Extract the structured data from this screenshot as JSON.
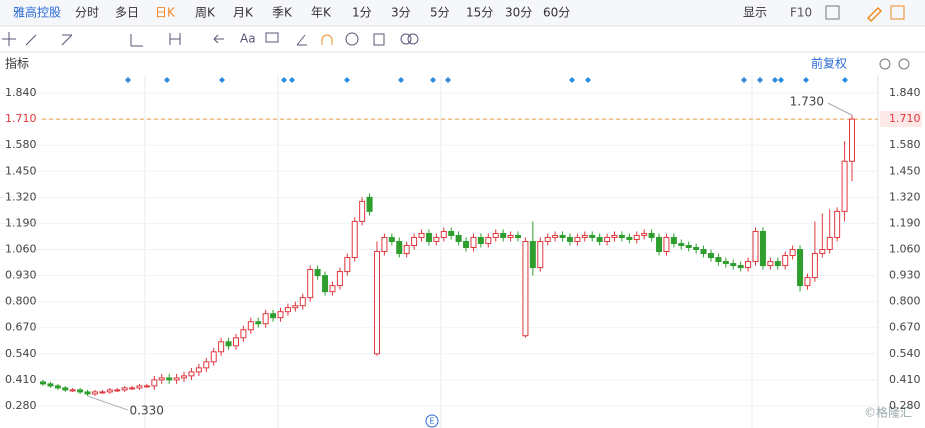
{
  "toolbar": {
    "stock": "雅高控股",
    "periods": [
      "分时",
      "多日",
      "日K",
      "周K",
      "月K",
      "季K",
      "年K",
      "1分",
      "3分",
      "5分",
      "15分",
      "30分",
      "60分"
    ],
    "display": "显示",
    "f10": "F10",
    "text_tool": "Aa"
  },
  "indicator_label": "指标",
  "adjust": "前复权",
  "event_marker": "E",
  "watermark": "©格隆汇",
  "chart_data": {
    "type": "candlestick",
    "open": [
      0.4,
      0.39,
      0.38,
      0.37,
      0.36,
      0.36,
      0.35,
      0.34,
      0.35,
      0.35,
      0.36,
      0.36,
      0.37,
      0.37,
      0.38,
      0.38,
      0.41,
      0.42,
      0.41,
      0.42,
      0.43,
      0.45,
      0.47,
      0.5,
      0.55,
      0.6,
      0.58,
      0.62,
      0.66,
      0.7,
      0.69,
      0.74,
      0.72,
      0.75,
      0.77,
      0.78,
      0.82,
      0.96,
      0.93,
      0.85,
      0.88,
      0.95,
      1.02,
      1.2,
      1.32,
      0.54,
      1.05,
      1.12,
      1.1,
      1.04,
      1.08,
      1.12,
      1.14,
      1.1,
      1.12,
      1.15,
      1.13,
      1.1,
      1.07,
      1.12,
      1.09,
      1.12,
      1.14,
      1.12,
      1.13,
      0.63,
      1.1,
      0.97,
      1.1,
      1.12,
      1.13,
      1.12,
      1.1,
      1.12,
      1.13,
      1.12,
      1.1,
      1.12,
      1.13,
      1.12,
      1.11,
      1.13,
      1.14,
      1.12,
      1.05,
      1.12,
      1.09,
      1.08,
      1.07,
      1.06,
      1.04,
      1.02,
      1.0,
      0.99,
      0.98,
      0.97,
      1.0,
      1.15,
      0.98,
      1.0,
      0.98,
      1.03,
      1.06,
      0.88,
      0.92,
      1.04,
      1.06,
      1.12,
      1.25,
      1.5
    ],
    "high": [
      0.41,
      0.4,
      0.39,
      0.38,
      0.37,
      0.37,
      0.36,
      0.36,
      0.36,
      0.37,
      0.37,
      0.38,
      0.38,
      0.39,
      0.39,
      0.43,
      0.44,
      0.44,
      0.44,
      0.45,
      0.47,
      0.49,
      0.52,
      0.57,
      0.62,
      0.62,
      0.64,
      0.68,
      0.72,
      0.72,
      0.76,
      0.76,
      0.77,
      0.79,
      0.8,
      0.84,
      0.98,
      0.98,
      0.95,
      0.9,
      0.97,
      1.04,
      1.22,
      1.32,
      1.34,
      1.1,
      1.14,
      1.14,
      1.12,
      1.1,
      1.14,
      1.16,
      1.16,
      1.14,
      1.17,
      1.17,
      1.15,
      1.12,
      1.14,
      1.14,
      1.14,
      1.16,
      1.16,
      1.15,
      1.15,
      1.12,
      1.2,
      1.12,
      1.14,
      1.15,
      1.15,
      1.14,
      1.14,
      1.15,
      1.15,
      1.14,
      1.14,
      1.15,
      1.15,
      1.14,
      1.15,
      1.16,
      1.16,
      1.14,
      1.14,
      1.14,
      1.11,
      1.1,
      1.09,
      1.08,
      1.06,
      1.04,
      1.02,
      1.01,
      1.0,
      1.02,
      1.17,
      1.17,
      1.02,
      1.02,
      1.05,
      1.08,
      1.08,
      0.94,
      1.2,
      1.24,
      1.26,
      1.27,
      1.6,
      1.73
    ],
    "low": [
      0.38,
      0.37,
      0.36,
      0.35,
      0.35,
      0.34,
      0.33,
      0.33,
      0.34,
      0.34,
      0.35,
      0.35,
      0.36,
      0.36,
      0.37,
      0.36,
      0.39,
      0.39,
      0.39,
      0.4,
      0.41,
      0.43,
      0.45,
      0.48,
      0.53,
      0.56,
      0.56,
      0.6,
      0.64,
      0.67,
      0.67,
      0.7,
      0.7,
      0.73,
      0.75,
      0.76,
      0.8,
      0.91,
      0.83,
      0.83,
      0.86,
      0.93,
      1.0,
      1.18,
      1.23,
      0.53,
      1.03,
      1.08,
      1.02,
      1.02,
      1.06,
      1.1,
      1.08,
      1.08,
      1.1,
      1.11,
      1.08,
      1.05,
      1.05,
      1.07,
      1.07,
      1.1,
      1.1,
      1.1,
      1.1,
      0.62,
      0.93,
      0.95,
      1.08,
      1.1,
      1.1,
      1.08,
      1.08,
      1.1,
      1.1,
      1.08,
      1.08,
      1.1,
      1.1,
      1.09,
      1.09,
      1.11,
      1.1,
      1.03,
      1.03,
      1.07,
      1.06,
      1.05,
      1.04,
      1.02,
      1.0,
      0.98,
      0.97,
      0.96,
      0.95,
      0.95,
      0.98,
      0.96,
      0.96,
      0.96,
      0.96,
      1.01,
      0.85,
      0.86,
      0.9,
      1.02,
      1.04,
      1.1,
      1.2,
      1.4
    ],
    "close": [
      0.39,
      0.38,
      0.37,
      0.36,
      0.36,
      0.35,
      0.34,
      0.35,
      0.35,
      0.36,
      0.36,
      0.37,
      0.37,
      0.38,
      0.38,
      0.41,
      0.42,
      0.41,
      0.42,
      0.43,
      0.45,
      0.47,
      0.5,
      0.55,
      0.6,
      0.58,
      0.62,
      0.66,
      0.7,
      0.69,
      0.74,
      0.72,
      0.75,
      0.77,
      0.78,
      0.82,
      0.96,
      0.93,
      0.85,
      0.88,
      0.95,
      1.02,
      1.2,
      1.3,
      1.25,
      1.05,
      1.12,
      1.1,
      1.04,
      1.08,
      1.12,
      1.14,
      1.1,
      1.12,
      1.15,
      1.13,
      1.1,
      1.07,
      1.12,
      1.09,
      1.12,
      1.14,
      1.12,
      1.13,
      1.12,
      1.1,
      0.97,
      1.1,
      1.12,
      1.13,
      1.12,
      1.1,
      1.12,
      1.13,
      1.12,
      1.1,
      1.12,
      1.13,
      1.12,
      1.11,
      1.13,
      1.14,
      1.12,
      1.05,
      1.12,
      1.09,
      1.08,
      1.07,
      1.06,
      1.04,
      1.02,
      1.0,
      0.99,
      0.98,
      0.97,
      1.0,
      1.15,
      0.98,
      1.0,
      0.98,
      1.03,
      1.06,
      0.88,
      0.92,
      1.04,
      1.06,
      1.12,
      1.25,
      1.5,
      1.71
    ],
    "up_color": "#e0383e",
    "down_color": "#2f9e2f",
    "ylim": [
      0.21,
      1.93
    ],
    "yticks": [
      {
        "value": 1.84,
        "label": "1.840"
      },
      {
        "value": 1.71,
        "label": "1.710"
      },
      {
        "value": 1.58,
        "label": "1.580"
      },
      {
        "value": 1.45,
        "label": "1.450"
      },
      {
        "value": 1.32,
        "label": "1.320"
      },
      {
        "value": 1.19,
        "label": "1.190"
      },
      {
        "value": 1.06,
        "label": "1.060"
      },
      {
        "value": 0.93,
        "label": "0.930"
      },
      {
        "value": 0.8,
        "label": "0.800"
      },
      {
        "value": 0.67,
        "label": "0.670"
      },
      {
        "value": 0.54,
        "label": "0.540"
      },
      {
        "value": 0.41,
        "label": "0.410"
      },
      {
        "value": 0.28,
        "label": "0.280"
      }
    ],
    "last_price": {
      "value": 1.71,
      "label": "1.710"
    },
    "high_label": {
      "value": 1.73,
      "label": "1.730"
    },
    "low_label": {
      "value": 0.33,
      "label": "0.330"
    },
    "grid": true
  }
}
